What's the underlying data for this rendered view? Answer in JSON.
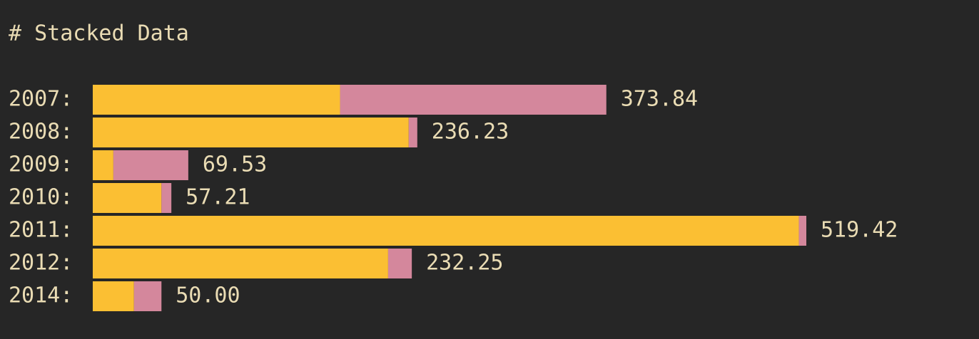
{
  "chart_data": {
    "type": "stacked-bar",
    "title": "# Stacked Data",
    "categories": [
      "2007:",
      "2008:",
      "2009:",
      "2010:",
      "2011:",
      "2012:",
      "2014:"
    ],
    "series": [
      {
        "color": "#fbbf33",
        "values": [
          180,
          230,
          15,
          50,
          514,
          215,
          30
        ]
      },
      {
        "color": "#d4879c",
        "values": [
          193.84,
          6.23,
          54.53,
          7.21,
          5.42,
          17.25,
          20
        ]
      }
    ],
    "totals": [
      373.84,
      236.23,
      69.53,
      57.21,
      519.42,
      232.25,
      50.0
    ],
    "value_labels": [
      "373.84",
      "236.23",
      "69.53",
      "57.21",
      "519.42",
      "232.25",
      "50.00"
    ]
  }
}
